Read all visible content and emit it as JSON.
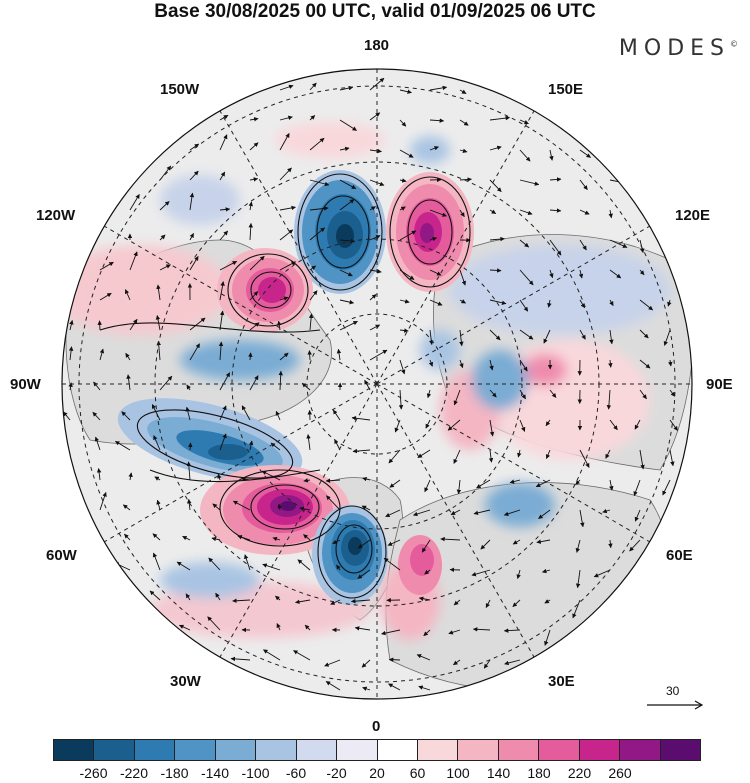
{
  "title": "Base 30/08/2025 00 UTC, valid 01/09/2025 06 UTC",
  "brand": "MODES",
  "brand_mark": "©",
  "longitudes": {
    "top": "180",
    "bottom": "0",
    "left": "90W",
    "right": "90E",
    "nw_upper": "150W",
    "nw_lower": "120W",
    "ne_upper": "150E",
    "ne_lower": "120E",
    "sw_upper": "60W",
    "sw_lower": "30W",
    "se_upper": "60E",
    "se_lower": "30E"
  },
  "reference_vector": {
    "label": "30"
  },
  "colorbar": {
    "ticks": [
      "-260",
      "-220",
      "-180",
      "-140",
      "-100",
      "-60",
      "-20",
      "20",
      "60",
      "100",
      "140",
      "180",
      "220",
      "260"
    ],
    "colors": [
      "#0b3b5c",
      "#1b5f8e",
      "#2d7bb1",
      "#4f94c4",
      "#7aacd4",
      "#a9c4e3",
      "#d2daef",
      "#ebeaf5",
      "#ffffff",
      "#f9d8dc",
      "#f4b6c3",
      "#ef8cae",
      "#e45c9c",
      "#c8258c",
      "#921886",
      "#5a0d6e"
    ]
  },
  "features": {
    "anomalies": [
      {
        "name": "anomaly-neg-north-pacific",
        "value": -260
      },
      {
        "name": "anomaly-pos-east-siberia",
        "value": 240
      },
      {
        "name": "anomaly-pos-alaska",
        "value": 220
      },
      {
        "name": "anomaly-neg-canada",
        "value": -240
      },
      {
        "name": "anomaly-pos-north-atlantic",
        "value": 260
      },
      {
        "name": "anomaly-neg-greenland-sea",
        "value": -260
      },
      {
        "name": "anomaly-pos-scandinavia",
        "value": 160
      },
      {
        "name": "anomaly-neg-west-siberia",
        "value": -140
      },
      {
        "name": "anomaly-pos-central-siberia",
        "value": 100
      },
      {
        "name": "anomaly-neg-far-east",
        "value": -80
      }
    ]
  }
}
